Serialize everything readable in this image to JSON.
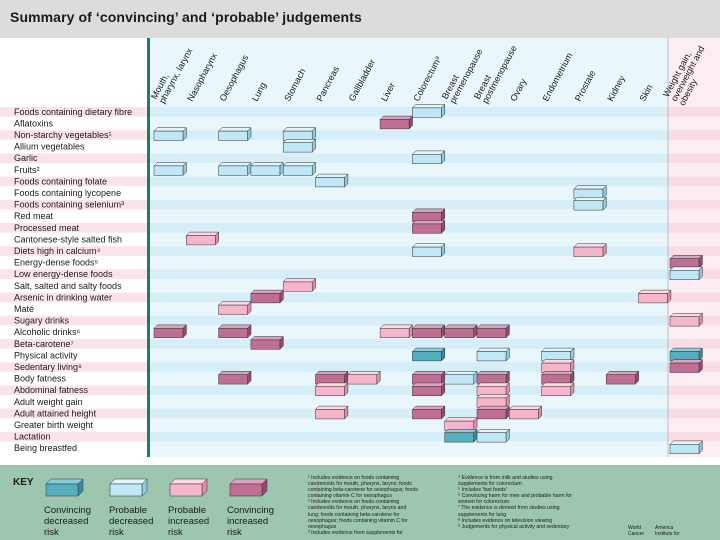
{
  "title": "Summary of ‘convincing’ and ‘probable’ judgements",
  "columns": [
    {
      "label": "Mouth, pharynx, larynx"
    },
    {
      "label": "Nasopharynx"
    },
    {
      "label": "Oesophagus"
    },
    {
      "label": "Lung"
    },
    {
      "label": "Stomach"
    },
    {
      "label": "Pancreas"
    },
    {
      "label": "Gallbladder"
    },
    {
      "label": "Liver"
    },
    {
      "label": "Colorectum⁸"
    },
    {
      "label": "Breast premenopause"
    },
    {
      "label": "Breast postmenopause"
    },
    {
      "label": "Ovary"
    },
    {
      "label": "Endometrium"
    },
    {
      "label": "Prostate"
    },
    {
      "label": "Kidney"
    },
    {
      "label": "Skin"
    },
    {
      "label": "Weight gain, overweight and obesity"
    }
  ],
  "rows": [
    {
      "label": "Foods containing dietary fibre"
    },
    {
      "label": "Aflatoxins"
    },
    {
      "label": "Non-starchy vegetables¹"
    },
    {
      "label": "Allium vegetables"
    },
    {
      "label": "Garlic"
    },
    {
      "label": "Fruits²"
    },
    {
      "label": "Foods containing folate"
    },
    {
      "label": "Foods containing lycopene"
    },
    {
      "label": "Foods containing selenium³"
    },
    {
      "label": "Red meat"
    },
    {
      "label": "Processed meat"
    },
    {
      "label": "Cantonese-style salted fish"
    },
    {
      "label": "Diets high in calcium⁴"
    },
    {
      "label": "Energy-dense foods⁵"
    },
    {
      "label": "Low energy-dense foods"
    },
    {
      "label": "Salt, salted and salty foods"
    },
    {
      "label": "Arsenic in drinking water"
    },
    {
      "label": "Maté"
    },
    {
      "label": "Sugary drinks"
    },
    {
      "label": "Alcoholic drinks⁶"
    },
    {
      "label": "Beta-carotene⁷"
    },
    {
      "label": "Physical activity"
    },
    {
      "label": "Sedentary living⁸"
    },
    {
      "label": "Body fatness"
    },
    {
      "label": "Abdominal fatness"
    },
    {
      "label": "Adult weight gain"
    },
    {
      "label": "Adult attained height"
    },
    {
      "label": "Greater birth weight"
    },
    {
      "label": "Lactation"
    },
    {
      "label": "Being breastfed"
    }
  ],
  "judgements": [
    {
      "row": 0,
      "col": 8,
      "type": "PD"
    },
    {
      "row": 1,
      "col": 7,
      "type": "CI"
    },
    {
      "row": 2,
      "col": 0,
      "type": "PD"
    },
    {
      "row": 2,
      "col": 2,
      "type": "PD"
    },
    {
      "row": 2,
      "col": 4,
      "type": "PD"
    },
    {
      "row": 3,
      "col": 4,
      "type": "PD"
    },
    {
      "row": 4,
      "col": 8,
      "type": "PD"
    },
    {
      "row": 5,
      "col": 0,
      "type": "PD"
    },
    {
      "row": 5,
      "col": 2,
      "type": "PD"
    },
    {
      "row": 5,
      "col": 3,
      "type": "PD"
    },
    {
      "row": 5,
      "col": 4,
      "type": "PD"
    },
    {
      "row": 6,
      "col": 5,
      "type": "PD"
    },
    {
      "row": 7,
      "col": 13,
      "type": "PD"
    },
    {
      "row": 8,
      "col": 13,
      "type": "PD"
    },
    {
      "row": 9,
      "col": 8,
      "type": "CI"
    },
    {
      "row": 10,
      "col": 8,
      "type": "CI"
    },
    {
      "row": 11,
      "col": 1,
      "type": "PI"
    },
    {
      "row": 12,
      "col": 8,
      "type": "PD"
    },
    {
      "row": 12,
      "col": 13,
      "type": "PI"
    },
    {
      "row": 13,
      "col": 16,
      "type": "CI"
    },
    {
      "row": 14,
      "col": 16,
      "type": "PD"
    },
    {
      "row": 15,
      "col": 4,
      "type": "PI"
    },
    {
      "row": 16,
      "col": 3,
      "type": "CI"
    },
    {
      "row": 16,
      "col": 15,
      "type": "PI"
    },
    {
      "row": 17,
      "col": 2,
      "type": "PI"
    },
    {
      "row": 18,
      "col": 16,
      "type": "PI"
    },
    {
      "row": 19,
      "col": 0,
      "type": "CI"
    },
    {
      "row": 19,
      "col": 2,
      "type": "CI"
    },
    {
      "row": 19,
      "col": 7,
      "type": "PI"
    },
    {
      "row": 19,
      "col": 8,
      "type": "CI"
    },
    {
      "row": 19,
      "col": 9,
      "type": "CI"
    },
    {
      "row": 19,
      "col": 10,
      "type": "CI"
    },
    {
      "row": 20,
      "col": 3,
      "type": "CI"
    },
    {
      "row": 21,
      "col": 8,
      "type": "CD"
    },
    {
      "row": 21,
      "col": 10,
      "type": "PD"
    },
    {
      "row": 21,
      "col": 12,
      "type": "PD"
    },
    {
      "row": 21,
      "col": 16,
      "type": "CD"
    },
    {
      "row": 22,
      "col": 12,
      "type": "PI"
    },
    {
      "row": 22,
      "col": 16,
      "type": "CI"
    },
    {
      "row": 23,
      "col": 2,
      "type": "CI"
    },
    {
      "row": 23,
      "col": 5,
      "type": "CI"
    },
    {
      "row": 23,
      "col": 6,
      "type": "PI"
    },
    {
      "row": 23,
      "col": 8,
      "type": "CI"
    },
    {
      "row": 23,
      "col": 9,
      "type": "PD"
    },
    {
      "row": 23,
      "col": 10,
      "type": "CI"
    },
    {
      "row": 23,
      "col": 12,
      "type": "CI"
    },
    {
      "row": 23,
      "col": 14,
      "type": "CI"
    },
    {
      "row": 24,
      "col": 5,
      "type": "PI"
    },
    {
      "row": 24,
      "col": 8,
      "type": "CI"
    },
    {
      "row": 24,
      "col": 10,
      "type": "PI"
    },
    {
      "row": 24,
      "col": 12,
      "type": "PI"
    },
    {
      "row": 25,
      "col": 10,
      "type": "PI"
    },
    {
      "row": 26,
      "col": 5,
      "type": "PI"
    },
    {
      "row": 26,
      "col": 8,
      "type": "CI"
    },
    {
      "row": 26,
      "col": 10,
      "type": "CI"
    },
    {
      "row": 26,
      "col": 11,
      "type": "PI"
    },
    {
      "row": 27,
      "col": 9,
      "type": "PI"
    },
    {
      "row": 28,
      "col": 9,
      "type": "CD"
    },
    {
      "row": 28,
      "col": 10,
      "type": "PD"
    },
    {
      "row": 29,
      "col": 16,
      "type": "PD"
    }
  ],
  "key": {
    "title": "KEY",
    "items": [
      {
        "type": "CD",
        "label": "Convincing decreased risk"
      },
      {
        "type": "PD",
        "label": "Probable decreased risk"
      },
      {
        "type": "PI",
        "label": "Probable increased risk"
      },
      {
        "type": "CI",
        "label": "Convincing increased risk"
      }
    ]
  },
  "colors": {
    "CD": [
      "#56afc0",
      "#8cccd8",
      "#3a8c9c"
    ],
    "PD": [
      "#bfe7f6",
      "#e2f5fc",
      "#8ccbe2"
    ],
    "PI": [
      "#f5b6cb",
      "#fbd9e5",
      "#e28aa8"
    ],
    "CI": [
      "#bf6f93",
      "#dba2bc",
      "#97496e"
    ],
    "header": "#dcdcdc",
    "key_bg": "#9cc6ad",
    "left_band": "#1f7b62"
  },
  "footnotes_left": [
    "¹ Includes evidence on foods containing",
    "  carotenoids for mouth, pharynx, larynx; foods",
    "  containing beta-carotene for oesophagus; foods",
    "  containing vitamin C for oesophagus",
    "² Includes evidence on foods containing",
    "  carotenoids for mouth, pharynx, larynx and",
    "  lung; foods containing beta-carotene for",
    "  oesophagus; foods containing vitamin C for",
    "  oesophagus",
    "³ Includes evidence from supplements for"
  ],
  "footnotes_right": [
    "⁴ Evidence is from milk and studies using",
    "  supplements for colorectum",
    "⁵ Includes 'fast foods'",
    "⁶ Convincing harm for men and probable harm for",
    "  women for colorectum",
    "⁷ The evidence is derived from studies using",
    "  supplements for lung",
    "⁸ Includes evidence on television viewing",
    "⁹ Judgements for physical activity and sedentary"
  ],
  "logo_lines": [
    "World",
    "Cancer",
    "Research Fund"
  ],
  "logo_lines2": [
    "America",
    "Institute for",
    "Cancer Research"
  ]
}
